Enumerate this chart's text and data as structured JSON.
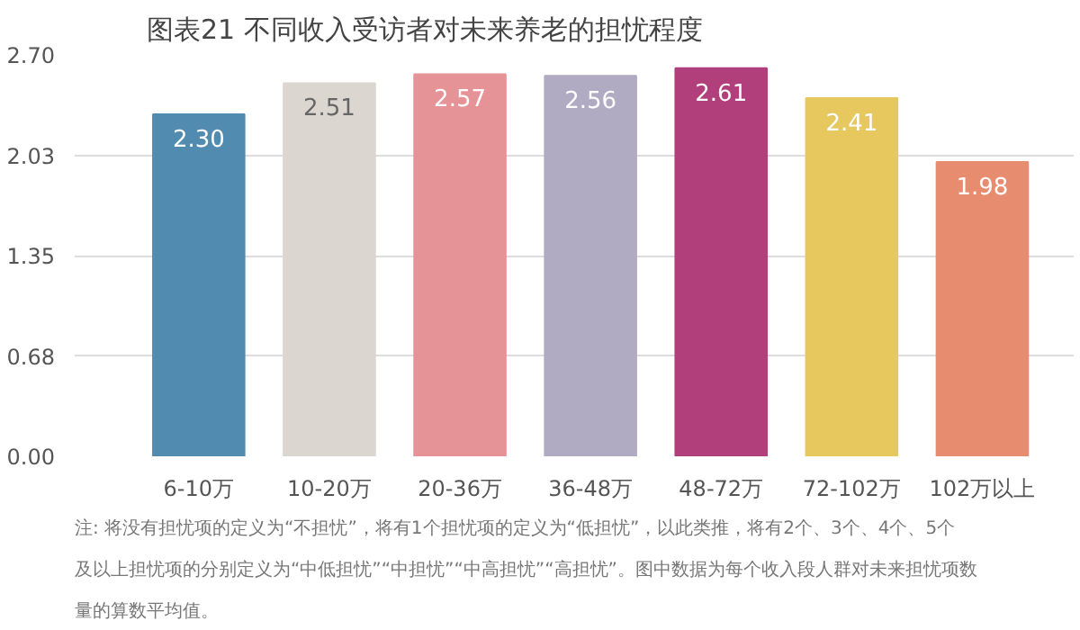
{
  "chart_data": {
    "type": "bar",
    "title": "图表21  不同收入受访者对未来养老的担忧程度",
    "categories": [
      "6-10万",
      "10-20万",
      "20-36万",
      "36-48万",
      "48-72万",
      "72-102万",
      "102万以上"
    ],
    "values": [
      2.3,
      2.51,
      2.57,
      2.56,
      2.61,
      2.41,
      1.98
    ],
    "colors": [
      "#528bb0",
      "#dbd6d0",
      "#e69398",
      "#b0abc3",
      "#b13f7b",
      "#e6c85f",
      "#e88c70"
    ],
    "ylim": [
      0,
      2.7
    ],
    "yticks": [
      {
        "value": 0,
        "label": "0.00"
      },
      {
        "value": 0.675,
        "label": "0.68"
      },
      {
        "value": 1.35,
        "label": "1.35"
      },
      {
        "value": 2.025,
        "label": "2.03"
      },
      {
        "value": 2.7,
        "label": "2.70"
      }
    ],
    "grid": "y",
    "value_labels": [
      "2.30",
      "2.51",
      "2.57",
      "2.56",
      "2.61",
      "2.41",
      "1.98"
    ],
    "annotations": [
      "注: 将没有担忧项的定义为“不担忧”，将有1个担忧项的定义为“低担忧”，以此类推，将有2个、3个、4个、5个及以上担忧项的分别定义为“中低担忧”“中担忧”“中高担忧”“高担忧”。图中数据为每个收入段人群对未来担忧项数量的算数平均值。"
    ]
  }
}
